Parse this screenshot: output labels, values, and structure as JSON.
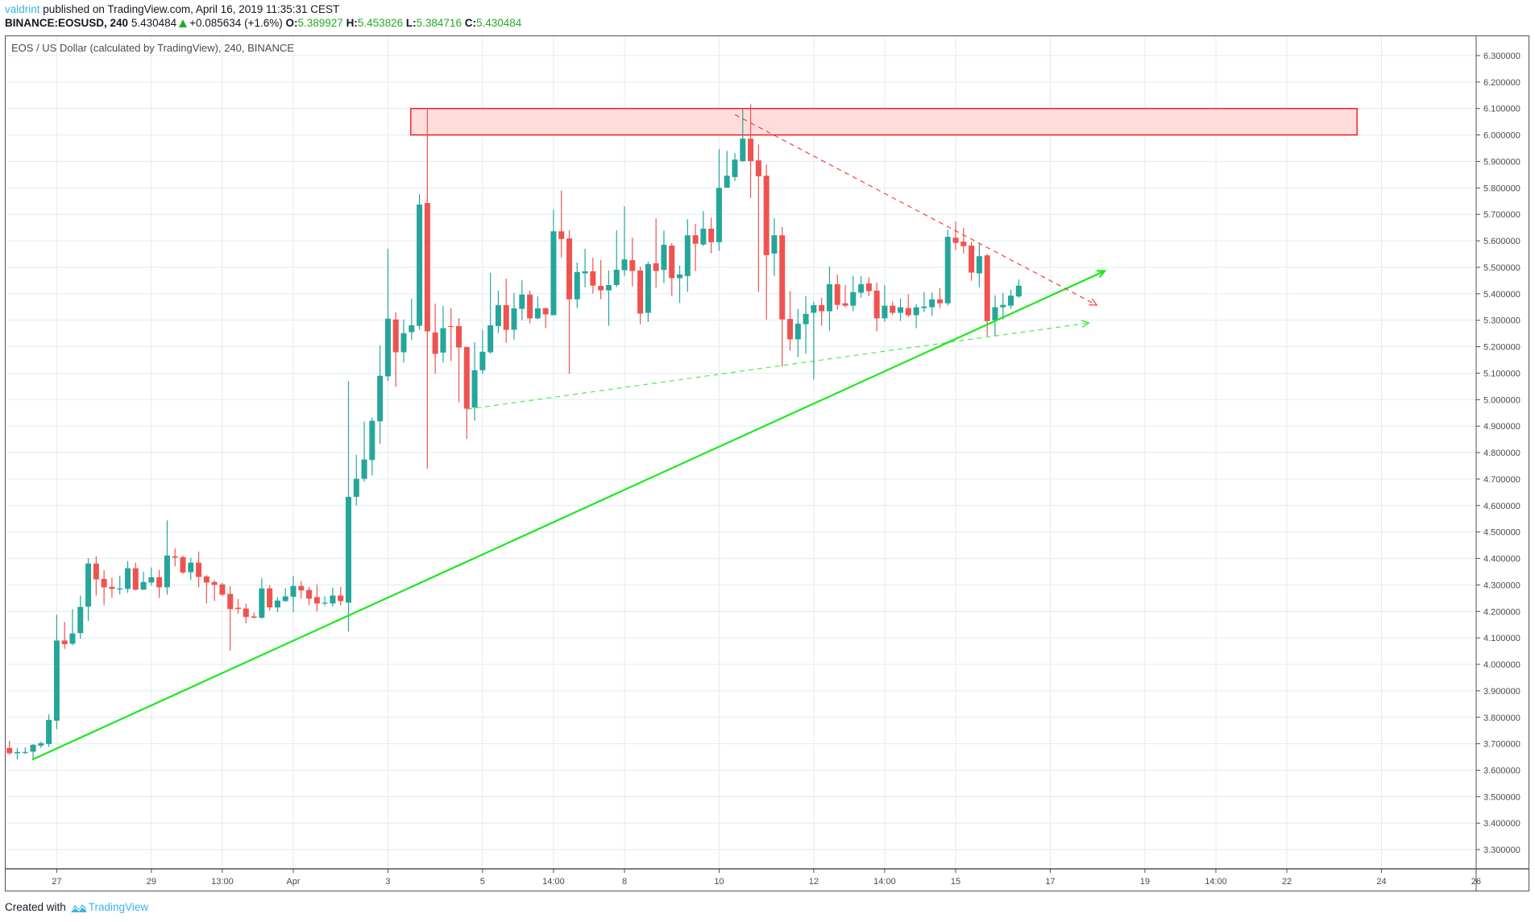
{
  "header": {
    "user": "valdrint",
    "published": "published on TradingView.com, April 16, 2019 11:35:31 CEST",
    "symbol": "BINANCE:EOSUSD, 240",
    "last": "5.430484",
    "change": "+0.085634 (+1.6%)",
    "o_label": "O:",
    "o": "5.389927",
    "h_label": "H:",
    "h": "5.453826",
    "l_label": "L:",
    "l": "5.384716",
    "c_label": "C:",
    "c": "5.430484"
  },
  "chart_title": "EOS / US Dollar (calculated by TradingView), 240, BINANCE",
  "footer": {
    "created_with": "Created with",
    "brand": "TradingView"
  },
  "colors": {
    "up": "#26a69a",
    "down": "#ef5350",
    "grid": "#e1ecf2",
    "trend": "#1ee81e",
    "zone_fill": "#ffd7d7",
    "zone_stroke": "#ff0000",
    "resistance_line": "#ff3b3b"
  },
  "chart_data": {
    "type": "candlestick",
    "title": "EOS / US Dollar (calculated by TradingView), 240, BINANCE",
    "ylim": [
      3.2,
      6.35
    ],
    "yticks": [
      "6.300000",
      "6.200000",
      "6.100000",
      "6.000000",
      "5.900000",
      "5.800000",
      "5.700000",
      "5.600000",
      "5.500000",
      "5.400000",
      "5.300000",
      "5.200000",
      "5.100000",
      "5.000000",
      "4.900000",
      "4.800000",
      "4.700000",
      "4.600000",
      "4.500000",
      "4.400000",
      "4.300000",
      "4.200000",
      "4.100000",
      "4.000000",
      "3.900000",
      "3.800000",
      "3.700000",
      "3.600000",
      "3.500000",
      "3.400000",
      "3.300000"
    ],
    "xticks": [
      {
        "label": "27",
        "bar": 6
      },
      {
        "label": "29",
        "bar": 18
      },
      {
        "label": "13:00",
        "bar": 27
      },
      {
        "label": "Apr",
        "bar": 36
      },
      {
        "label": "3",
        "bar": 48
      },
      {
        "label": "5",
        "bar": 60
      },
      {
        "label": "14:00",
        "bar": 69
      },
      {
        "label": "8",
        "bar": 78
      },
      {
        "label": "10",
        "bar": 90
      },
      {
        "label": "12",
        "bar": 102
      },
      {
        "label": "14:00",
        "bar": 111
      },
      {
        "label": "15",
        "bar": 120
      },
      {
        "label": "17",
        "bar": 132
      },
      {
        "label": "19",
        "bar": 144
      },
      {
        "label": "14:00",
        "bar": 153
      },
      {
        "label": "22",
        "bar": 162
      },
      {
        "label": "24",
        "bar": 174
      },
      {
        "label": "26",
        "bar": 186
      }
    ],
    "ohlc": [
      [
        3.684,
        3.711,
        3.658,
        3.664
      ],
      [
        3.664,
        3.684,
        3.64,
        3.669
      ],
      [
        3.666,
        3.687,
        3.66,
        3.669
      ],
      [
        3.67,
        3.699,
        3.643,
        3.696
      ],
      [
        3.693,
        3.708,
        3.684,
        3.702
      ],
      [
        3.699,
        3.811,
        3.688,
        3.79
      ],
      [
        3.787,
        4.187,
        3.755,
        4.09
      ],
      [
        4.09,
        4.16,
        4.058,
        4.076
      ],
      [
        4.078,
        4.208,
        4.072,
        4.117
      ],
      [
        4.118,
        4.26,
        4.097,
        4.217
      ],
      [
        4.218,
        4.401,
        4.164,
        4.381
      ],
      [
        4.381,
        4.408,
        4.26,
        4.321
      ],
      [
        4.323,
        4.356,
        4.224,
        4.291
      ],
      [
        4.293,
        4.328,
        4.251,
        4.285
      ],
      [
        4.283,
        4.335,
        4.264,
        4.287
      ],
      [
        4.285,
        4.39,
        4.27,
        4.363
      ],
      [
        4.363,
        4.384,
        4.279,
        4.282
      ],
      [
        4.282,
        4.35,
        4.282,
        4.311
      ],
      [
        4.309,
        4.366,
        4.297,
        4.329
      ],
      [
        4.329,
        4.357,
        4.251,
        4.291
      ],
      [
        4.291,
        4.544,
        4.264,
        4.411
      ],
      [
        4.408,
        4.438,
        4.37,
        4.403
      ],
      [
        4.405,
        4.411,
        4.342,
        4.347
      ],
      [
        4.348,
        4.402,
        4.318,
        4.384
      ],
      [
        4.384,
        4.426,
        4.291,
        4.33
      ],
      [
        4.332,
        4.338,
        4.23,
        4.309
      ],
      [
        4.311,
        4.318,
        4.239,
        4.3
      ],
      [
        4.302,
        4.308,
        4.258,
        4.263
      ],
      [
        4.266,
        4.296,
        4.052,
        4.209
      ],
      [
        4.214,
        4.247,
        4.191,
        4.209
      ],
      [
        4.211,
        4.229,
        4.155,
        4.179
      ],
      [
        4.181,
        4.196,
        4.173,
        4.176
      ],
      [
        4.176,
        4.326,
        4.173,
        4.287
      ],
      [
        4.287,
        4.299,
        4.203,
        4.215
      ],
      [
        4.215,
        4.254,
        4.197,
        4.241
      ],
      [
        4.239,
        4.287,
        4.236,
        4.257
      ],
      [
        4.255,
        4.335,
        4.197,
        4.296
      ],
      [
        4.296,
        4.314,
        4.248,
        4.279
      ],
      [
        4.281,
        4.293,
        4.224,
        4.248
      ],
      [
        4.254,
        4.302,
        4.2,
        4.23
      ],
      [
        4.23,
        4.257,
        4.221,
        4.233
      ],
      [
        4.23,
        4.29,
        4.218,
        4.26
      ],
      [
        4.26,
        4.293,
        4.222,
        4.239
      ],
      [
        4.233,
        5.07,
        4.124,
        4.633
      ],
      [
        4.633,
        4.792,
        4.6,
        4.701
      ],
      [
        4.701,
        4.917,
        4.69,
        4.774
      ],
      [
        4.772,
        4.932,
        4.714,
        4.92
      ],
      [
        4.918,
        5.205,
        4.833,
        5.09
      ],
      [
        5.088,
        5.57,
        5.07,
        5.306
      ],
      [
        5.303,
        5.33,
        5.048,
        5.179
      ],
      [
        5.179,
        5.303,
        5.14,
        5.251
      ],
      [
        5.255,
        5.381,
        5.225,
        5.281
      ],
      [
        5.279,
        5.776,
        5.264,
        5.737
      ],
      [
        5.743,
        6.1,
        4.739,
        5.258
      ],
      [
        5.254,
        5.363,
        5.097,
        5.173
      ],
      [
        5.178,
        5.354,
        5.14,
        5.27
      ],
      [
        5.278,
        5.345,
        5.146,
        5.275
      ],
      [
        5.278,
        5.308,
        4.99,
        5.197
      ],
      [
        5.199,
        5.199,
        4.851,
        4.966
      ],
      [
        4.97,
        5.217,
        4.921,
        5.111
      ],
      [
        5.111,
        5.263,
        5.097,
        5.181
      ],
      [
        5.179,
        5.479,
        5.173,
        5.281
      ],
      [
        5.278,
        5.412,
        5.252,
        5.357
      ],
      [
        5.357,
        5.457,
        5.215,
        5.264
      ],
      [
        5.264,
        5.403,
        5.227,
        5.345
      ],
      [
        5.343,
        5.451,
        5.3,
        5.397
      ],
      [
        5.397,
        5.412,
        5.288,
        5.307
      ],
      [
        5.307,
        5.39,
        5.303,
        5.345
      ],
      [
        5.345,
        5.348,
        5.27,
        5.322
      ],
      [
        5.319,
        5.718,
        5.319,
        5.636
      ],
      [
        5.636,
        5.79,
        5.537,
        5.607
      ],
      [
        5.609,
        5.639,
        5.097,
        5.379
      ],
      [
        5.379,
        5.518,
        5.346,
        5.482
      ],
      [
        5.477,
        5.57,
        5.425,
        5.485
      ],
      [
        5.485,
        5.536,
        5.401,
        5.431
      ],
      [
        5.43,
        5.527,
        5.379,
        5.413
      ],
      [
        5.413,
        5.488,
        5.279,
        5.433
      ],
      [
        5.433,
        5.639,
        5.425,
        5.491
      ],
      [
        5.489,
        5.73,
        5.467,
        5.53
      ],
      [
        5.527,
        5.612,
        5.428,
        5.486
      ],
      [
        5.488,
        5.503,
        5.285,
        5.325
      ],
      [
        5.328,
        5.521,
        5.294,
        5.512
      ],
      [
        5.515,
        5.685,
        5.422,
        5.486
      ],
      [
        5.49,
        5.639,
        5.44,
        5.585
      ],
      [
        5.582,
        5.591,
        5.392,
        5.459
      ],
      [
        5.459,
        5.506,
        5.365,
        5.473
      ],
      [
        5.467,
        5.682,
        5.407,
        5.621
      ],
      [
        5.621,
        5.664,
        5.486,
        5.589
      ],
      [
        5.586,
        5.712,
        5.58,
        5.646
      ],
      [
        5.646,
        5.688,
        5.553,
        5.595
      ],
      [
        5.595,
        5.946,
        5.562,
        5.8
      ],
      [
        5.801,
        5.94,
        5.801,
        5.846
      ],
      [
        5.841,
        5.931,
        5.826,
        5.907
      ],
      [
        5.901,
        6.1,
        5.899,
        5.986
      ],
      [
        5.986,
        6.116,
        5.762,
        5.901
      ],
      [
        5.904,
        5.964,
        5.407,
        5.844
      ],
      [
        5.846,
        5.888,
        5.303,
        5.546
      ],
      [
        5.552,
        5.685,
        5.467,
        5.621
      ],
      [
        5.621,
        5.652,
        5.124,
        5.303
      ],
      [
        5.305,
        5.41,
        5.185,
        5.228
      ],
      [
        5.228,
        5.343,
        5.161,
        5.287
      ],
      [
        5.285,
        5.391,
        5.173,
        5.324
      ],
      [
        5.328,
        5.37,
        5.076,
        5.357
      ],
      [
        5.357,
        5.385,
        5.279,
        5.334
      ],
      [
        5.334,
        5.503,
        5.261,
        5.436
      ],
      [
        5.436,
        5.473,
        5.34,
        5.358
      ],
      [
        5.364,
        5.433,
        5.349,
        5.355
      ],
      [
        5.355,
        5.467,
        5.334,
        5.406
      ],
      [
        5.404,
        5.467,
        5.385,
        5.436
      ],
      [
        5.439,
        5.463,
        5.391,
        5.41
      ],
      [
        5.412,
        5.442,
        5.258,
        5.307
      ],
      [
        5.307,
        5.433,
        5.294,
        5.355
      ],
      [
        5.355,
        5.37,
        5.319,
        5.328
      ],
      [
        5.328,
        5.382,
        5.297,
        5.349
      ],
      [
        5.346,
        5.398,
        5.313,
        5.319
      ],
      [
        5.319,
        5.361,
        5.27,
        5.349
      ],
      [
        5.346,
        5.407,
        5.331,
        5.352
      ],
      [
        5.349,
        5.404,
        5.316,
        5.379
      ],
      [
        5.379,
        5.422,
        5.346,
        5.364
      ],
      [
        5.364,
        5.642,
        5.355,
        5.615
      ],
      [
        5.612,
        5.673,
        5.565,
        5.592
      ],
      [
        5.597,
        5.649,
        5.552,
        5.58
      ],
      [
        5.582,
        5.597,
        5.449,
        5.48
      ],
      [
        5.477,
        5.591,
        5.425,
        5.542
      ],
      [
        5.545,
        5.551,
        5.24,
        5.297
      ],
      [
        5.3,
        5.394,
        5.24,
        5.349
      ],
      [
        5.349,
        5.403,
        5.303,
        5.358
      ],
      [
        5.355,
        5.415,
        5.343,
        5.393
      ],
      [
        5.389927,
        5.453826,
        5.384716,
        5.430484
      ]
    ],
    "drawings": {
      "resistance_zone": {
        "from_bar": 50.9,
        "to_bar": 170.9,
        "price_low": 6.0,
        "price_high": 6.1
      },
      "support_trendline": {
        "from": [
          2.9,
          3.64
        ],
        "to": [
          138.9,
          5.486
        ],
        "style": "solid"
      },
      "dashed_support": {
        "from": [
          58.1,
          4.964
        ],
        "to": [
          136.9,
          5.29
        ],
        "style": "dashed"
      },
      "dashed_resistance": {
        "from": [
          92.0,
          6.077
        ],
        "to": [
          137.9,
          5.357
        ],
        "style": "dashed"
      }
    }
  }
}
